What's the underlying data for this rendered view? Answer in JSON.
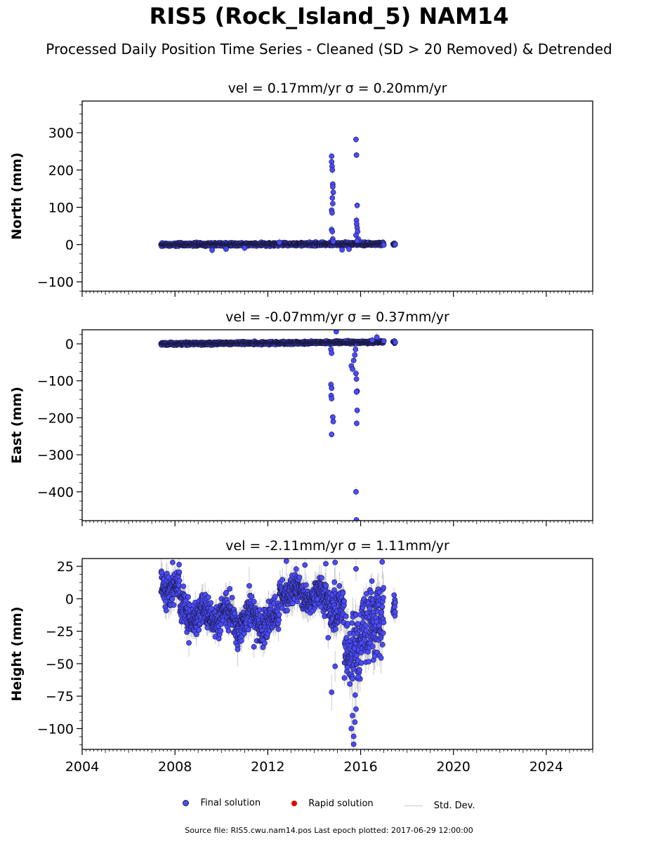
{
  "title": "RIS5 (Rock_Island_5) NAM14",
  "subtitle": "Processed Daily Position Time Series - Cleaned (SD > 20 Removed) & Detrended",
  "legend": {
    "final": "Final solution",
    "rapid": "Rapid solution",
    "sd": "Std. Dev."
  },
  "footer": "Source file: RIS5.cwu.nam14.pos  Last epoch plotted: 2017-06-29 12:00:00",
  "colors": {
    "final": "#4a4aff",
    "rapid": "#e00000",
    "std_dev": "#cccccc"
  },
  "chart_data": [
    {
      "type": "scatter",
      "title": "vel = 0.17mm/yr   σ = 0.20mm/yr",
      "ylabel": "North (mm)",
      "xlim": [
        2004.0,
        2026.0
      ],
      "ylim": [
        -125,
        385
      ],
      "yticks": [
        -100,
        0,
        100,
        200,
        300
      ],
      "xticks": [
        2004,
        2008,
        2012,
        2016,
        2020,
        2024
      ],
      "show_xticklabels": false,
      "base": {
        "start": 2007.4,
        "end": 2017.5,
        "offset": 0,
        "slope": 0.2,
        "noise": 3,
        "sd": 4,
        "gap": [
          2017.0,
          2017.4
        ]
      },
      "points": [
        [
          2014.75,
          237
        ],
        [
          2014.75,
          222
        ],
        [
          2014.77,
          210
        ],
        [
          2014.78,
          200
        ],
        [
          2014.8,
          162
        ],
        [
          2014.8,
          155
        ],
        [
          2014.82,
          140
        ],
        [
          2014.78,
          125
        ],
        [
          2014.8,
          110
        ],
        [
          2014.75,
          92
        ],
        [
          2014.77,
          85
        ],
        [
          2014.75,
          40
        ],
        [
          2014.78,
          35
        ],
        [
          2014.8,
          15
        ],
        [
          2014.82,
          8
        ],
        [
          2015.8,
          282
        ],
        [
          2015.82,
          240
        ],
        [
          2015.85,
          105
        ],
        [
          2015.82,
          65
        ],
        [
          2015.83,
          55
        ],
        [
          2015.85,
          45
        ],
        [
          2015.87,
          35
        ],
        [
          2015.8,
          25
        ],
        [
          2015.9,
          15
        ],
        [
          2015.85,
          10
        ],
        [
          2009.6,
          -15
        ],
        [
          2010.2,
          -12
        ],
        [
          2011.0,
          -9
        ],
        [
          2012.5,
          6
        ],
        [
          2015.2,
          -14
        ],
        [
          2015.5,
          -12
        ]
      ]
    },
    {
      "type": "scatter",
      "title": "vel = -0.07mm/yr   σ = 0.37mm/yr",
      "ylabel": "East (mm)",
      "xlim": [
        2004.0,
        2026.0
      ],
      "ylim": [
        -478,
        38
      ],
      "yticks": [
        -400,
        -300,
        -200,
        -100,
        0
      ],
      "xticks": [
        2004,
        2008,
        2012,
        2016,
        2020,
        2024
      ],
      "show_xticklabels": false,
      "base": {
        "start": 2007.4,
        "end": 2017.5,
        "offset": 0,
        "slope": 0.5,
        "noise": 2.5,
        "sd": 4,
        "gap": [
          2017.0,
          2017.4
        ]
      },
      "points": [
        [
          2014.95,
          33
        ],
        [
          2014.72,
          -15
        ],
        [
          2014.75,
          -25
        ],
        [
          2014.72,
          -110
        ],
        [
          2014.75,
          -120
        ],
        [
          2014.73,
          -140
        ],
        [
          2014.75,
          -148
        ],
        [
          2014.8,
          -198
        ],
        [
          2014.82,
          -210
        ],
        [
          2014.75,
          -245
        ],
        [
          2015.6,
          -60
        ],
        [
          2015.65,
          -68
        ],
        [
          2015.7,
          -45
        ],
        [
          2015.75,
          -30
        ],
        [
          2015.78,
          -15
        ],
        [
          2015.8,
          -80
        ],
        [
          2015.82,
          -95
        ],
        [
          2015.85,
          -128
        ],
        [
          2015.82,
          -130
        ],
        [
          2015.85,
          -180
        ],
        [
          2015.83,
          -215
        ],
        [
          2015.8,
          -400
        ],
        [
          2015.82,
          -476
        ],
        [
          2016.5,
          10
        ],
        [
          2016.7,
          18
        ]
      ]
    },
    {
      "type": "scatter",
      "title": "vel = -2.11mm/yr   σ = 1.11mm/yr",
      "ylabel": "Height (mm)",
      "xlabel": "",
      "xlim": [
        2004.0,
        2026.0
      ],
      "ylim": [
        -116,
        31
      ],
      "yticks": [
        -100,
        -75,
        -50,
        -25,
        0,
        25
      ],
      "xticks": [
        2004,
        2008,
        2012,
        2016,
        2020,
        2024
      ],
      "show_xticklabels": true,
      "segments": [
        {
          "start": 2007.4,
          "end": 2008.2,
          "from": 10,
          "to": 8,
          "noise": 8,
          "sd": 8
        },
        {
          "start": 2008.2,
          "end": 2012.5,
          "from": -10,
          "to": -18,
          "noise": 9,
          "sd": 7
        },
        {
          "start": 2012.5,
          "end": 2014.7,
          "from": 7,
          "to": 0,
          "noise": 8,
          "sd": 7
        },
        {
          "start": 2014.7,
          "end": 2015.3,
          "from": -5,
          "to": -12,
          "noise": 12,
          "sd": 9
        },
        {
          "start": 2015.3,
          "end": 2017.0,
          "from": -45,
          "to": -10,
          "noise": 20,
          "sd": 10
        },
        {
          "start": 2017.4,
          "end": 2017.5,
          "from": -8,
          "to": -8,
          "noise": 5,
          "sd": 6
        }
      ],
      "points": [
        [
          2014.75,
          -72
        ],
        [
          2015.6,
          -100
        ],
        [
          2015.7,
          -106
        ],
        [
          2015.7,
          -112
        ],
        [
          2015.75,
          -95
        ],
        [
          2015.8,
          -85
        ],
        [
          2015.65,
          -90
        ],
        [
          2015.9,
          -60
        ],
        [
          2014.5,
          27
        ],
        [
          2014.9,
          28
        ],
        [
          2012.8,
          29
        ],
        [
          2013.6,
          26
        ],
        [
          2015.8,
          23
        ],
        [
          2007.9,
          28
        ],
        [
          2008.6,
          -34
        ],
        [
          2010.7,
          -39
        ],
        [
          2011.4,
          -37
        ],
        [
          2011.2,
          10
        ],
        [
          2014.9,
          -52
        ],
        [
          2014.6,
          -30
        ]
      ]
    }
  ]
}
